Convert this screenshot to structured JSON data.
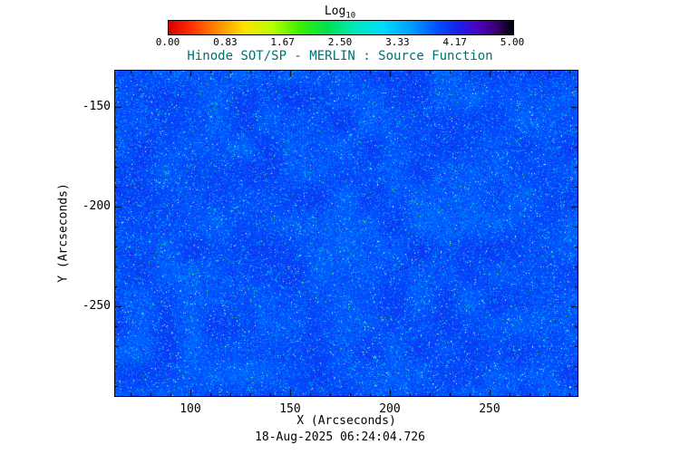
{
  "styles": {
    "title_color": "#007070",
    "axis_color": "#000000",
    "background_color": "#ffffff"
  },
  "footer": {
    "timestamp": "18-Aug-2025 06:24:04.726"
  },
  "chart_data": {
    "type": "heatmap",
    "title": "Hinode SOT/SP - MERLIN : Source Function",
    "xlabel": "X (Arcseconds)",
    "ylabel": "Y (Arcseconds)",
    "xlim": [
      62.3,
      294.1
    ],
    "ylim": [
      -295.0,
      -131.8
    ],
    "x_ticks": [
      100,
      150,
      200,
      250
    ],
    "x_tick_labels": [
      "100",
      "150",
      "200",
      "250"
    ],
    "y_ticks": [
      -150,
      -200,
      -250
    ],
    "y_tick_labels": [
      "-150",
      "-200",
      "-250"
    ],
    "minor_tick_step": 10,
    "grid": false,
    "colorbar": {
      "label": "Log",
      "label_sub": "10",
      "orientation": "horizontal",
      "position": "top",
      "range": [
        0.0,
        5.0
      ],
      "tick_labels": [
        "0.00",
        "0.83",
        "1.67",
        "2.50",
        "3.33",
        "4.17",
        "5.00"
      ],
      "colormap": "rainbow",
      "stops": [
        [
          0.0,
          "#d40000"
        ],
        [
          0.06,
          "#ff2a00"
        ],
        [
          0.14,
          "#ff8800"
        ],
        [
          0.22,
          "#ffe100"
        ],
        [
          0.3,
          "#b8ff00"
        ],
        [
          0.38,
          "#3cf000"
        ],
        [
          0.46,
          "#00e050"
        ],
        [
          0.54,
          "#00e8b8"
        ],
        [
          0.62,
          "#00dcff"
        ],
        [
          0.7,
          "#00a0ff"
        ],
        [
          0.78,
          "#0050ff"
        ],
        [
          0.84,
          "#1820e8"
        ],
        [
          0.9,
          "#5000c0"
        ],
        [
          0.96,
          "#300060"
        ],
        [
          1.0,
          "#000000"
        ]
      ]
    },
    "field": {
      "description": "Dense speckled solar source-function map: predominantly royal blue (log10 ~ 3.9-4.0) with abundant small cyan/azure and near-white bright speckles, sparse green specks, sparse darker indigo specks, and faint low-frequency patchiness",
      "seed": 1234,
      "base_value_log10": 3.92,
      "value_range_log10": [
        0,
        5
      ],
      "speckle_fractions": {
        "white": 0.006,
        "green": 0.004,
        "cyan": 0.05,
        "light_blue": 0.045,
        "dark_indigo": 0.06
      }
    }
  }
}
